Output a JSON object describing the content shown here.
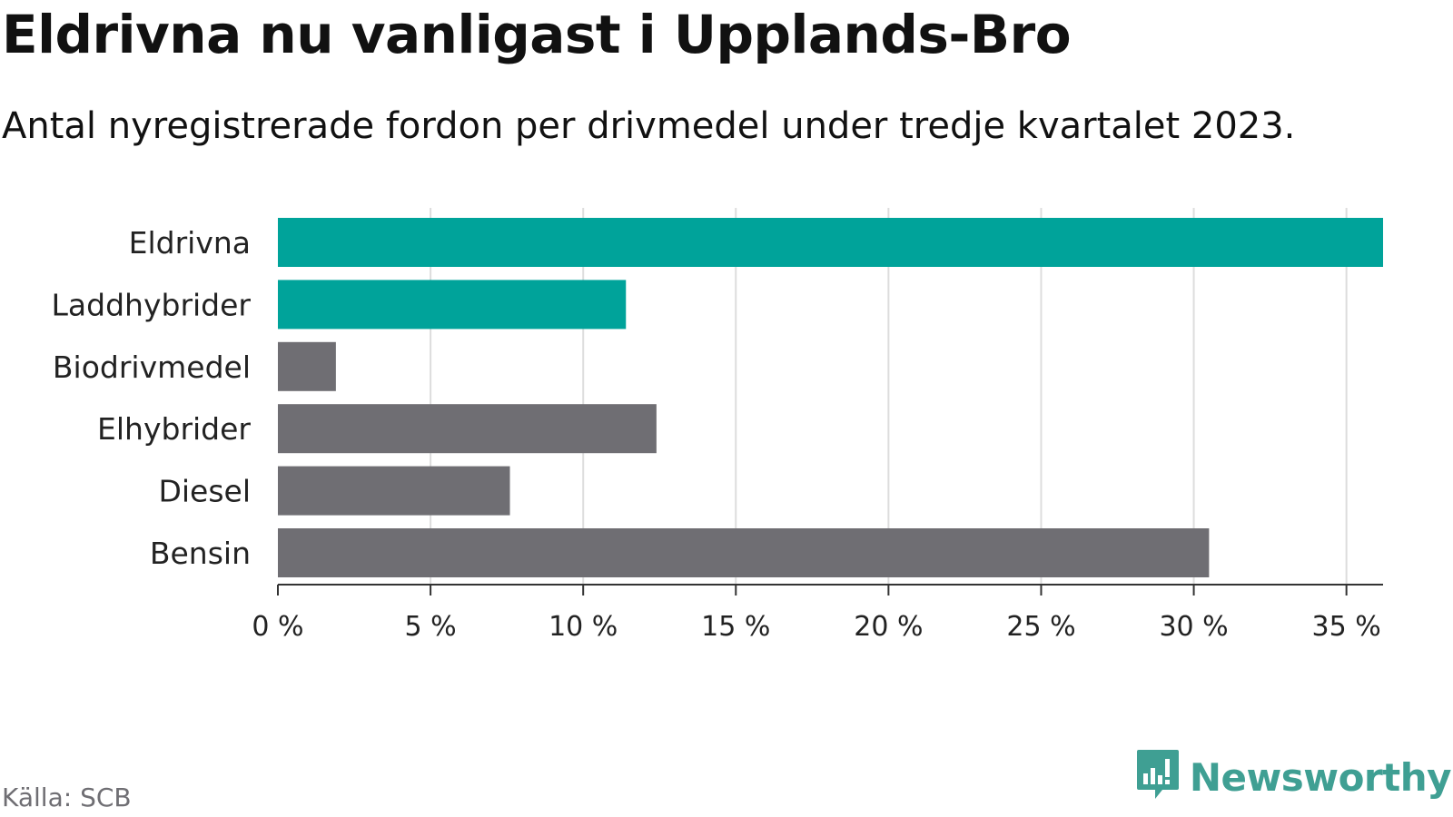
{
  "colors": {
    "highlight": "#00a39a",
    "neutral": "#6f6e73",
    "grid": "#dddddd",
    "axis": "#333333",
    "brand": "#3f9f93"
  },
  "source": "Källa: SCB",
  "brand_name": "Newsworthy",
  "icons": {
    "brand": "newsworthy-logo-icon"
  },
  "chart_data": {
    "type": "bar",
    "orientation": "horizontal",
    "title": "Eldrivna nu vanligast i Upplands-Bro",
    "subtitle": "Antal nyregistrerade fordon per drivmedel under tredje kvartalet 2023.",
    "categories": [
      "Eldrivna",
      "Laddhybrider",
      "Biodrivmedel",
      "Elhybrider",
      "Diesel",
      "Bensin"
    ],
    "values": [
      36.2,
      11.4,
      1.9,
      12.4,
      7.6,
      30.5
    ],
    "highlighted": [
      true,
      true,
      false,
      false,
      false,
      false
    ],
    "xlim": [
      0,
      36.2
    ],
    "xticks": [
      0,
      5,
      10,
      15,
      20,
      25,
      30,
      35
    ],
    "xtick_labels": [
      "0 %",
      "5 %",
      "10 %",
      "15 %",
      "20 %",
      "25 %",
      "30 %",
      "35 %"
    ],
    "grid": true,
    "xlabel": "",
    "ylabel": ""
  }
}
